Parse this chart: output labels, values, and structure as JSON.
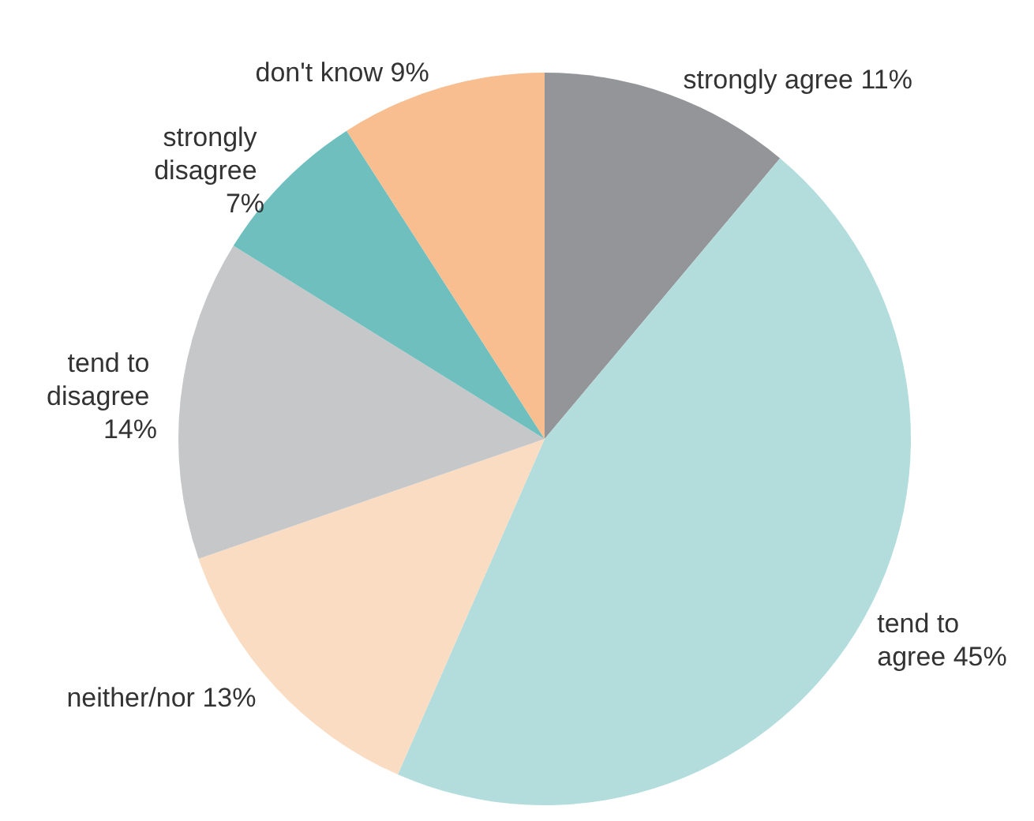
{
  "chart_data": {
    "type": "pie",
    "categories": [
      "strongly agree",
      "tend to agree",
      "neither/nor",
      "tend to disagree",
      "strongly disagree",
      "don't know"
    ],
    "values": [
      11,
      45,
      13,
      14,
      7,
      9
    ],
    "value_labels": [
      "11%",
      "45%",
      "13%",
      "14%",
      "7%",
      "9%"
    ],
    "colors": [
      "#939598",
      "#b3dcdc",
      "#fadcc3",
      "#c6c7c9",
      "#6fbfbf",
      "#f8be8f"
    ]
  }
}
